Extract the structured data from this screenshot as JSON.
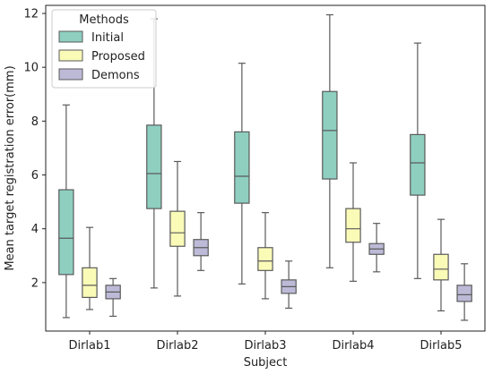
{
  "chart_data": {
    "type": "box",
    "title": "",
    "xlabel": "Subject",
    "ylabel": "Mean target registration error(mm)",
    "ylim": [
      0.2,
      12.3
    ],
    "yticks": [
      2,
      4,
      6,
      8,
      10,
      12
    ],
    "categories": [
      "Dirlab1",
      "Dirlab2",
      "Dirlab3",
      "Dirlab4",
      "Dirlab5"
    ],
    "legend": {
      "title": "Methods",
      "position": "top-left"
    },
    "grid": false,
    "series": [
      {
        "name": "Initial",
        "color": "#8ecfc0",
        "boxes": [
          {
            "min": 0.7,
            "q1": 2.3,
            "median": 3.65,
            "q3": 5.45,
            "max": 8.6
          },
          {
            "min": 1.8,
            "q1": 4.75,
            "median": 6.05,
            "q3": 7.85,
            "max": 11.8
          },
          {
            "min": 1.95,
            "q1": 4.95,
            "median": 5.95,
            "q3": 7.6,
            "max": 10.15
          },
          {
            "min": 2.55,
            "q1": 5.85,
            "median": 7.65,
            "q3": 9.1,
            "max": 11.95
          },
          {
            "min": 2.15,
            "q1": 5.25,
            "median": 6.45,
            "q3": 7.5,
            "max": 10.9
          }
        ]
      },
      {
        "name": "Proposed",
        "color": "#fbfbb8",
        "boxes": [
          {
            "min": 1.0,
            "q1": 1.45,
            "median": 1.9,
            "q3": 2.55,
            "max": 4.05
          },
          {
            "min": 1.5,
            "q1": 3.35,
            "median": 3.85,
            "q3": 4.65,
            "max": 6.5
          },
          {
            "min": 1.4,
            "q1": 2.45,
            "median": 2.8,
            "q3": 3.3,
            "max": 4.6
          },
          {
            "min": 2.05,
            "q1": 3.5,
            "median": 4.0,
            "q3": 4.75,
            "max": 6.45
          },
          {
            "min": 0.95,
            "q1": 2.1,
            "median": 2.5,
            "q3": 3.05,
            "max": 4.35
          }
        ]
      },
      {
        "name": "Demons",
        "color": "#bdbad8",
        "boxes": [
          {
            "min": 0.75,
            "q1": 1.4,
            "median": 1.65,
            "q3": 1.9,
            "max": 2.15
          },
          {
            "min": 2.45,
            "q1": 3.0,
            "median": 3.3,
            "q3": 3.6,
            "max": 4.6
          },
          {
            "min": 1.05,
            "q1": 1.6,
            "median": 1.85,
            "q3": 2.1,
            "max": 2.8
          },
          {
            "min": 2.4,
            "q1": 3.05,
            "median": 3.25,
            "q3": 3.45,
            "max": 4.2
          },
          {
            "min": 0.6,
            "q1": 1.3,
            "median": 1.55,
            "q3": 1.9,
            "max": 2.7
          }
        ]
      }
    ]
  }
}
